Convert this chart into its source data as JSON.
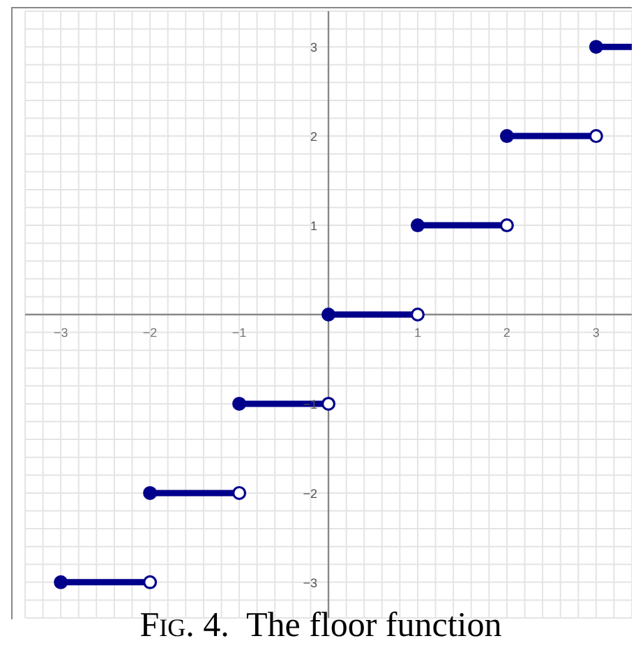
{
  "chart_data": {
    "type": "line",
    "annotations": [
      "Fig. 4.  The floor function"
    ],
    "xlim": [
      -3.4,
      3.4
    ],
    "ylim": [
      -3.4,
      3.4
    ],
    "xticks": [
      {
        "value": -3.4,
        "label": null
      },
      {
        "value": -3.2,
        "label": null
      },
      {
        "value": -3,
        "label": "−3"
      },
      {
        "value": -2.8,
        "label": null
      },
      {
        "value": -2.6,
        "label": null
      },
      {
        "value": -2.4,
        "label": null
      },
      {
        "value": -2.2,
        "label": null
      },
      {
        "value": -2,
        "label": "−2"
      },
      {
        "value": -1.8,
        "label": null
      },
      {
        "value": -1.6,
        "label": null
      },
      {
        "value": -1.4,
        "label": null
      },
      {
        "value": -1.2,
        "label": null
      },
      {
        "value": -1,
        "label": "−1"
      },
      {
        "value": -0.8,
        "label": null
      },
      {
        "value": -0.6,
        "label": null
      },
      {
        "value": -0.4,
        "label": null
      },
      {
        "value": -0.2,
        "label": null
      },
      {
        "value": 0,
        "label": null
      },
      {
        "value": 0.2,
        "label": null
      },
      {
        "value": 0.4,
        "label": null
      },
      {
        "value": 0.6,
        "label": null
      },
      {
        "value": 0.8,
        "label": null
      },
      1,
      {
        "value": 1.2,
        "label": null
      },
      {
        "value": 1.4,
        "label": null
      },
      {
        "value": 1.6,
        "label": null
      },
      {
        "value": 1.8,
        "label": null
      },
      2,
      {
        "value": 2.2,
        "label": null
      },
      {
        "value": 2.4,
        "label": null
      },
      {
        "value": 2.6,
        "label": null
      },
      {
        "value": 2.8,
        "label": null
      },
      3,
      {
        "value": 3.2,
        "label": null
      },
      {
        "value": 3.4,
        "label": null
      }
    ],
    "yticks": [
      {
        "value": -3.4,
        "label": null
      },
      {
        "value": -3.2,
        "label": null
      },
      {
        "value": -3,
        "label": "−3"
      },
      {
        "value": -2.8,
        "label": null
      },
      {
        "value": -2.6,
        "label": null
      },
      {
        "value": -2.4,
        "label": null
      },
      {
        "value": -2.2,
        "label": null
      },
      {
        "value": -2,
        "label": "−2"
      },
      {
        "value": -1.8,
        "label": null
      },
      {
        "value": -1.6,
        "label": null
      },
      {
        "value": -1.4,
        "label": null
      },
      {
        "value": -1.2,
        "label": null
      },
      {
        "value": -1,
        "label": "−1"
      },
      {
        "value": -0.8,
        "label": null
      },
      {
        "value": -0.6,
        "label": null
      },
      {
        "value": -0.4,
        "label": null
      },
      {
        "value": -0.2,
        "label": null
      },
      {
        "value": 0,
        "label": null
      },
      {
        "value": 0.2,
        "label": null
      },
      {
        "value": 0.4,
        "label": null
      },
      {
        "value": 0.6,
        "label": null
      },
      {
        "value": 0.8,
        "label": null
      },
      1,
      {
        "value": 1.2,
        "label": null
      },
      {
        "value": 1.4,
        "label": null
      },
      {
        "value": 1.6,
        "label": null
      },
      {
        "value": 1.8,
        "label": null
      },
      2,
      {
        "value": 2.2,
        "label": null
      },
      {
        "value": 2.4,
        "label": null
      },
      {
        "value": 2.6,
        "label": null
      },
      {
        "value": 2.8,
        "label": null
      },
      3,
      {
        "value": 3.2,
        "label": null
      },
      {
        "value": 3.4,
        "label": null
      }
    ],
    "grid": true,
    "line_style": "solid",
    "series": [
      {
        "color": "#00008b",
        "x": [
          -3,
          -2
        ],
        "values": [
          -3,
          -3
        ]
      },
      {
        "color": "#00008b",
        "x": [
          -2,
          -1
        ],
        "values": [
          -2,
          -2
        ]
      },
      {
        "color": "#00008b",
        "x": [
          -1,
          0
        ],
        "values": [
          -1,
          -1
        ]
      },
      {
        "color": "#00008b",
        "x": [
          0,
          1
        ],
        "values": [
          0,
          0
        ]
      },
      {
        "color": "#00008b",
        "x": [
          1,
          2
        ],
        "values": [
          1,
          1
        ]
      },
      {
        "color": "#00008b",
        "x": [
          2,
          3
        ],
        "values": [
          2,
          2
        ]
      },
      {
        "color": "#00008b",
        "x": [
          3,
          3.4
        ],
        "values": [
          3,
          3
        ]
      },
      {
        "type": "scatter",
        "marker": "circle",
        "color": "#00008b",
        "x": [
          -3,
          -2,
          -1,
          0,
          1,
          2,
          3
        ],
        "values": [
          -3,
          -2,
          -1,
          0,
          1,
          2,
          3
        ]
      },
      {
        "type": "scatter",
        "marker": "circle",
        "color": "#ffffff",
        "x": [
          -2,
          -1,
          0,
          1,
          2,
          3
        ],
        "values": [
          -3,
          -2,
          -1,
          0,
          1,
          2
        ]
      }
    ]
  }
}
